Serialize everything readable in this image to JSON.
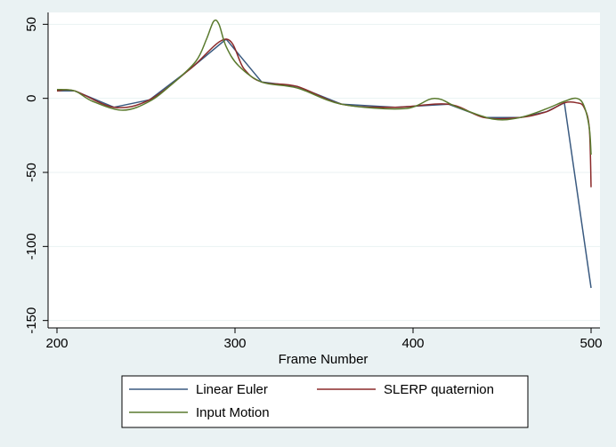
{
  "chart_data": {
    "type": "line",
    "title": "",
    "xlabel": "Frame Number",
    "ylabel": "",
    "xlim": [
      195,
      505
    ],
    "ylim": [
      -155,
      58
    ],
    "xticks": [
      200,
      300,
      400,
      500
    ],
    "yticks": [
      -150,
      -100,
      -50,
      0,
      50
    ],
    "x_tick_labels": [
      "200",
      "300",
      "400",
      "500"
    ],
    "y_tick_labels": [
      "-150",
      "-100",
      "-50",
      "0",
      "50"
    ],
    "grid": "horizontal",
    "legend_position": "bottom",
    "series": [
      {
        "name": "Linear Euler",
        "color": "#3a5a80",
        "x": [
          200,
          210,
          232,
          252,
          275,
          295,
          315,
          335,
          360,
          390,
          420,
          440,
          460,
          475,
          485,
          500
        ],
        "y": [
          5,
          5,
          -6,
          -1,
          20,
          40,
          11,
          8,
          -4,
          -6,
          -4,
          -13,
          -13,
          -9,
          -3,
          -128
        ]
      },
      {
        "name": "SLERP quaternion",
        "color": "#8b2a2a",
        "x": [
          200,
          210,
          232,
          252,
          275,
          295,
          305,
          315,
          335,
          360,
          390,
          420,
          440,
          460,
          475,
          485,
          492,
          496,
          499,
          500
        ],
        "y": [
          5,
          5,
          -6,
          -1,
          20,
          40,
          20,
          11,
          8,
          -4,
          -6,
          -4,
          -13,
          -13,
          -9,
          -3,
          -3,
          -6,
          -20,
          -60
        ]
      },
      {
        "name": "Input Motion",
        "color": "#5a7a2e",
        "x": [
          200,
          210,
          220,
          237,
          252,
          265,
          278,
          284,
          288,
          291,
          295,
          302,
          315,
          335,
          360,
          395,
          412,
          425,
          445,
          460,
          475,
          485,
          492,
          496,
          499,
          500
        ],
        "y": [
          6,
          5,
          -2,
          -8,
          -2,
          10,
          25,
          40,
          52,
          50,
          35,
          22,
          11,
          7,
          -4,
          -7,
          0,
          -6,
          -14,
          -13,
          -7,
          -2,
          0,
          -5,
          -20,
          -38
        ]
      }
    ]
  }
}
